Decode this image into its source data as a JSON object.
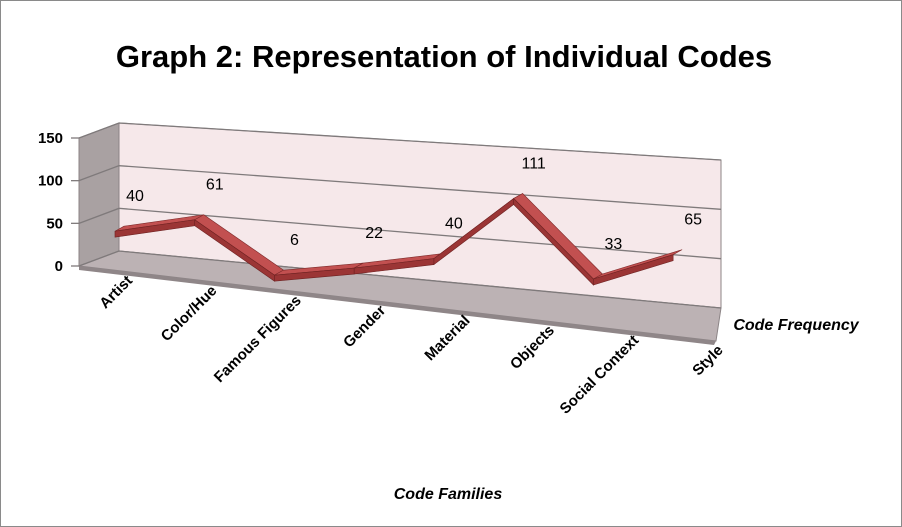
{
  "chart_data": {
    "type": "line",
    "title": "Graph 2: Representation of Individual Codes",
    "xlabel": "Code Families",
    "series_axis_label": "Code Frequency",
    "categories": [
      "Artist",
      "Color/Hue",
      "Famous Figures",
      "Gender",
      "Material",
      "Objects",
      "Social Context",
      "Style"
    ],
    "series": [
      {
        "values": [
          40,
          61,
          6,
          22,
          40,
          111,
          33,
          65
        ]
      }
    ],
    "ylim": [
      0,
      150
    ],
    "yticks": [
      "0",
      "50",
      "100",
      "150"
    ],
    "grid": true,
    "three_d": true,
    "legend": "none",
    "colors": {
      "ribbon_front": "#9b3535",
      "ribbon_top": "#c25050",
      "back_wall": "#f4e6e8",
      "side_wall": "#a8a0a0",
      "floor": "#b9afb1"
    }
  }
}
